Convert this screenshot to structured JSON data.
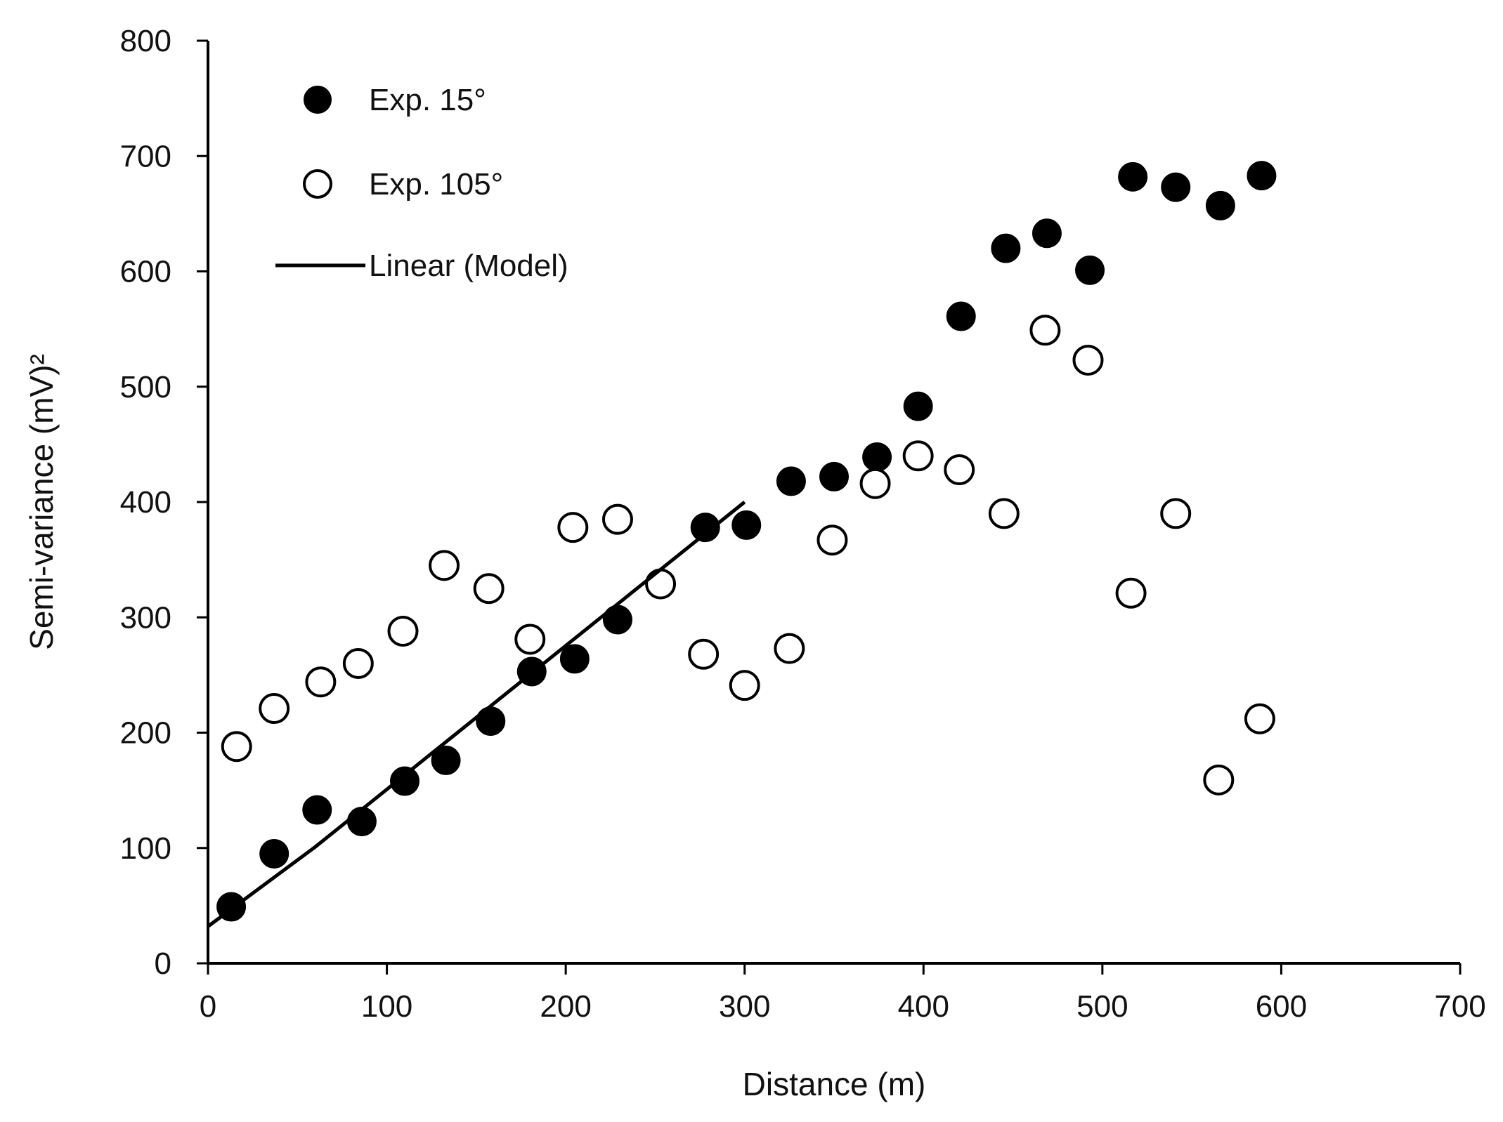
{
  "chart_data": {
    "type": "scatter",
    "title": "",
    "xlabel": "Distance (m)",
    "ylabel": "Semi-variance (mV)²",
    "xlim": [
      0,
      700
    ],
    "ylim": [
      0,
      800
    ],
    "xticks": [
      0,
      100,
      200,
      300,
      400,
      500,
      600,
      700
    ],
    "yticks": [
      0,
      100,
      200,
      300,
      400,
      500,
      600,
      700,
      800
    ],
    "grid": false,
    "legend_position": "top-left",
    "series": [
      {
        "name": "Exp. 15°",
        "marker": "filled-circle",
        "color": "#000000",
        "points": [
          {
            "x": 13,
            "y": 49
          },
          {
            "x": 37,
            "y": 95
          },
          {
            "x": 61,
            "y": 133
          },
          {
            "x": 86,
            "y": 123
          },
          {
            "x": 110,
            "y": 158
          },
          {
            "x": 133,
            "y": 176
          },
          {
            "x": 158,
            "y": 210
          },
          {
            "x": 181,
            "y": 253
          },
          {
            "x": 205,
            "y": 264
          },
          {
            "x": 229,
            "y": 298
          },
          {
            "x": 278,
            "y": 378
          },
          {
            "x": 301,
            "y": 380
          },
          {
            "x": 326,
            "y": 418
          },
          {
            "x": 350,
            "y": 422
          },
          {
            "x": 374,
            "y": 439
          },
          {
            "x": 397,
            "y": 483
          },
          {
            "x": 421,
            "y": 561
          },
          {
            "x": 446,
            "y": 620
          },
          {
            "x": 469,
            "y": 633
          },
          {
            "x": 493,
            "y": 601
          },
          {
            "x": 517,
            "y": 682
          },
          {
            "x": 541,
            "y": 673
          },
          {
            "x": 566,
            "y": 657
          },
          {
            "x": 589,
            "y": 683
          }
        ]
      },
      {
        "name": "Exp. 105°",
        "marker": "open-circle",
        "color": "#000000",
        "points": [
          {
            "x": 16,
            "y": 188
          },
          {
            "x": 37,
            "y": 221
          },
          {
            "x": 63,
            "y": 244
          },
          {
            "x": 84,
            "y": 260
          },
          {
            "x": 109,
            "y": 288
          },
          {
            "x": 132,
            "y": 345
          },
          {
            "x": 157,
            "y": 325
          },
          {
            "x": 180,
            "y": 281
          },
          {
            "x": 204,
            "y": 378
          },
          {
            "x": 229,
            "y": 385
          },
          {
            "x": 253,
            "y": 329
          },
          {
            "x": 277,
            "y": 268
          },
          {
            "x": 300,
            "y": 241
          },
          {
            "x": 325,
            "y": 273
          },
          {
            "x": 349,
            "y": 367
          },
          {
            "x": 373,
            "y": 416
          },
          {
            "x": 397,
            "y": 440
          },
          {
            "x": 420,
            "y": 428
          },
          {
            "x": 445,
            "y": 390
          },
          {
            "x": 468,
            "y": 549
          },
          {
            "x": 492,
            "y": 523
          },
          {
            "x": 516,
            "y": 321
          },
          {
            "x": 541,
            "y": 390
          },
          {
            "x": 565,
            "y": 159
          },
          {
            "x": 588,
            "y": 212
          }
        ]
      },
      {
        "name": "Linear (Model)",
        "marker": "line",
        "color": "#000000",
        "points": [
          {
            "x": 0,
            "y": 32
          },
          {
            "x": 60,
            "y": 101
          },
          {
            "x": 300,
            "y": 400
          }
        ]
      }
    ]
  }
}
